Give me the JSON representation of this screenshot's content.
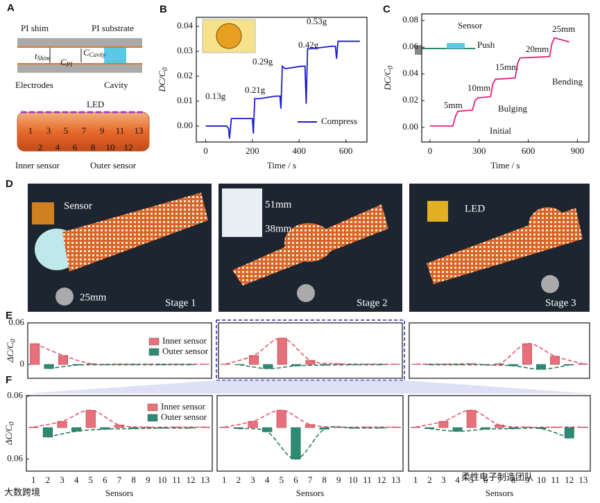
{
  "panel_letters": [
    "A",
    "B",
    "C",
    "D",
    "E",
    "F"
  ],
  "panel_a": {
    "texts": [
      "PI shim",
      "PI substrate",
      "t",
      "Shim",
      "C",
      "Cavity",
      "C",
      "PI",
      "Electrodes",
      "Cavity",
      "LED",
      "1",
      "3",
      "5",
      "7",
      "9",
      "11",
      "13",
      "2",
      "4",
      "6",
      "8",
      "10",
      "12",
      "Inner sensor",
      "Outer sensor"
    ]
  },
  "panel_d": {
    "texts": [
      "Sensor",
      "25mm",
      "Stage 1",
      "51mm",
      "38mm",
      "Stage 2",
      "LED",
      "Stage 3"
    ]
  },
  "watermarks": [
    "大数跨境",
    "柔性电子制造团队"
  ],
  "chart_data": [
    {
      "type": "line",
      "xlabel": "Time / s",
      "ylabel": "DC/C",
      "ylabel_sub": "0",
      "xlim": [
        -40,
        690
      ],
      "ylim": [
        -0.0064,
        0.0436
      ],
      "xticks": [
        0,
        200,
        400,
        600
      ],
      "yticks": [
        {
          "value": 0,
          "label": "0.00"
        },
        {
          "value": 0.01,
          "label": "0.01"
        },
        {
          "value": 0.02,
          "label": "0.02"
        },
        {
          "value": 0.03,
          "label": "0.03"
        },
        {
          "value": 0.04,
          "label": "0.04"
        }
      ],
      "x": [
        0,
        90,
        98,
        102,
        110,
        180,
        200,
        204,
        210,
        230,
        300,
        318,
        322,
        328,
        340,
        410,
        425,
        430,
        436,
        450,
        540,
        555,
        560,
        566,
        580,
        660
      ],
      "series": [
        {
          "name": "Compress",
          "color": "#1a1ad0",
          "values": [
            0,
            0,
            -0.001,
            -0.005,
            0.003,
            0.003,
            0.003,
            -0.003,
            0.011,
            0.011,
            0.012,
            0.012,
            0.007,
            0.024,
            0.023,
            0.024,
            0.024,
            0.009,
            0.031,
            0.031,
            0.032,
            0.032,
            0.027,
            0.034,
            0.034,
            0.034
          ]
        }
      ],
      "annotations": [
        "0.13g",
        "0.21g",
        "0.29g",
        "0.42g",
        "0.53g"
      ]
    },
    {
      "type": "line",
      "xlabel": "Time / s",
      "ylabel": "DC/C",
      "ylabel_sub": "0",
      "xlim": [
        -50,
        970
      ],
      "ylim": [
        -0.011,
        0.085
      ],
      "xticks": [
        0,
        300,
        600,
        900
      ],
      "yticks": [
        {
          "value": 0,
          "label": "0.00"
        },
        {
          "value": 0.02,
          "label": "0.02"
        },
        {
          "value": 0.04,
          "label": "0.04"
        },
        {
          "value": 0.06,
          "label": "0.06"
        },
        {
          "value": 0.08,
          "label": "0.08"
        }
      ],
      "x": [
        0,
        140,
        155,
        170,
        260,
        275,
        290,
        370,
        385,
        400,
        520,
        535,
        550,
        730,
        745,
        760,
        850
      ],
      "series": [
        {
          "color": "#e0207a",
          "values": [
            0.001,
            0.001,
            0.008,
            0.012,
            0.013,
            0.02,
            0.022,
            0.023,
            0.033,
            0.036,
            0.037,
            0.048,
            0.052,
            0.053,
            0.063,
            0.067,
            0.064
          ]
        }
      ],
      "annotations": [
        "Sensor",
        "Push",
        "5mm",
        "10mm",
        "15mm",
        "20mm",
        "25mm",
        "Bulging",
        "Bending",
        "Initial"
      ]
    },
    {
      "type": "bar",
      "ylabel": "ΔC/C",
      "ylabel_sub": "0",
      "ylim": [
        -0.02,
        0.06
      ],
      "yticks": [
        0.06,
        0
      ],
      "series": [
        {
          "name": "Inner sensor",
          "color": "#e8707a",
          "values": [
            0.03,
            null,
            0.013,
            null,
            0.001,
            null,
            0.0005,
            null,
            0.0005,
            null,
            0.0005,
            null,
            0.0005
          ]
        },
        {
          "name": "Outer sensor",
          "color": "#2e8b73",
          "values": [
            null,
            -0.006,
            null,
            -0.001,
            null,
            -0.0005,
            null,
            -0.0005,
            null,
            -0.0005,
            null,
            -0.0005,
            null
          ]
        }
      ]
    },
    {
      "type": "bar",
      "ylim": [
        -0.02,
        0.06
      ],
      "series": [
        {
          "color": "#e8707a",
          "values": [
            0.0005,
            null,
            0.013,
            null,
            0.038,
            null,
            0.006,
            null,
            0.001,
            null,
            0.0005,
            null,
            0.0005
          ]
        },
        {
          "color": "#2e8b73",
          "values": [
            null,
            -0.0005,
            null,
            -0.006,
            null,
            -0.002,
            null,
            -0.001,
            null,
            -0.0005,
            null,
            -0.0005,
            null
          ]
        }
      ]
    },
    {
      "type": "bar",
      "ylim": [
        -0.02,
        0.06
      ],
      "series": [
        {
          "color": "#e8707a",
          "values": [
            0.0005,
            null,
            0.0005,
            null,
            0.001,
            null,
            0.001,
            null,
            0.03,
            null,
            0.012,
            null,
            0.001
          ]
        },
        {
          "color": "#2e8b73",
          "values": [
            null,
            -0.0005,
            null,
            -0.0005,
            null,
            -0.0005,
            null,
            -0.002,
            null,
            -0.007,
            null,
            -0.001,
            null
          ]
        }
      ]
    },
    {
      "type": "bar",
      "ylabel": "ΔC/C",
      "ylabel_sub": "0",
      "xlabel": "Sensors",
      "ylim": [
        -0.083,
        0.061
      ],
      "yticks": [
        0.06,
        {
          "value": -0.06,
          "label": "0.06"
        }
      ],
      "categories": [
        "1",
        "2",
        "3",
        "4",
        "5",
        "6",
        "7",
        "8",
        "9",
        "10",
        "11",
        "12",
        "13"
      ],
      "series": [
        {
          "name": "Inner sensor",
          "color": "#e8707a",
          "values": [
            0.001,
            null,
            0.012,
            null,
            0.033,
            null,
            0.005,
            null,
            0.001,
            null,
            0.001,
            null,
            0.001
          ]
        },
        {
          "name": "Outer sensor",
          "color": "#2e8b73",
          "values": [
            null,
            -0.018,
            null,
            -0.007,
            null,
            -0.003,
            null,
            -0.002,
            null,
            -0.001,
            null,
            -0.001,
            null
          ]
        }
      ]
    },
    {
      "type": "bar",
      "xlabel": "Sensors",
      "ylim": [
        -0.083,
        0.061
      ],
      "categories": [
        "1",
        "2",
        "3",
        "4",
        "5",
        "6",
        "7",
        "8",
        "9",
        "10",
        "11",
        "12",
        "13"
      ],
      "series": [
        {
          "color": "#e8707a",
          "values": [
            0.001,
            null,
            0.012,
            null,
            0.033,
            null,
            0.006,
            null,
            0.001,
            null,
            0.001,
            null,
            0.001
          ]
        },
        {
          "color": "#2e8b73",
          "values": [
            null,
            -0.002,
            null,
            -0.008,
            null,
            -0.06,
            null,
            -0.003,
            null,
            -0.001,
            null,
            -0.001,
            null
          ]
        }
      ]
    },
    {
      "type": "bar",
      "xlabel": "Sensors",
      "ylim": [
        -0.083,
        0.061
      ],
      "categories": [
        "1",
        "2",
        "3",
        "4",
        "5",
        "6",
        "7",
        "8",
        "9",
        "10",
        "11",
        "12",
        "13"
      ],
      "series": [
        {
          "color": "#e8707a",
          "values": [
            0.001,
            null,
            0.012,
            null,
            0.033,
            null,
            0.005,
            null,
            0.001,
            null,
            0.001,
            null,
            0.001
          ]
        },
        {
          "color": "#2e8b73",
          "values": [
            null,
            -0.002,
            null,
            -0.007,
            null,
            -0.003,
            null,
            -0.002,
            null,
            -0.002,
            null,
            -0.02,
            null
          ]
        }
      ]
    }
  ]
}
